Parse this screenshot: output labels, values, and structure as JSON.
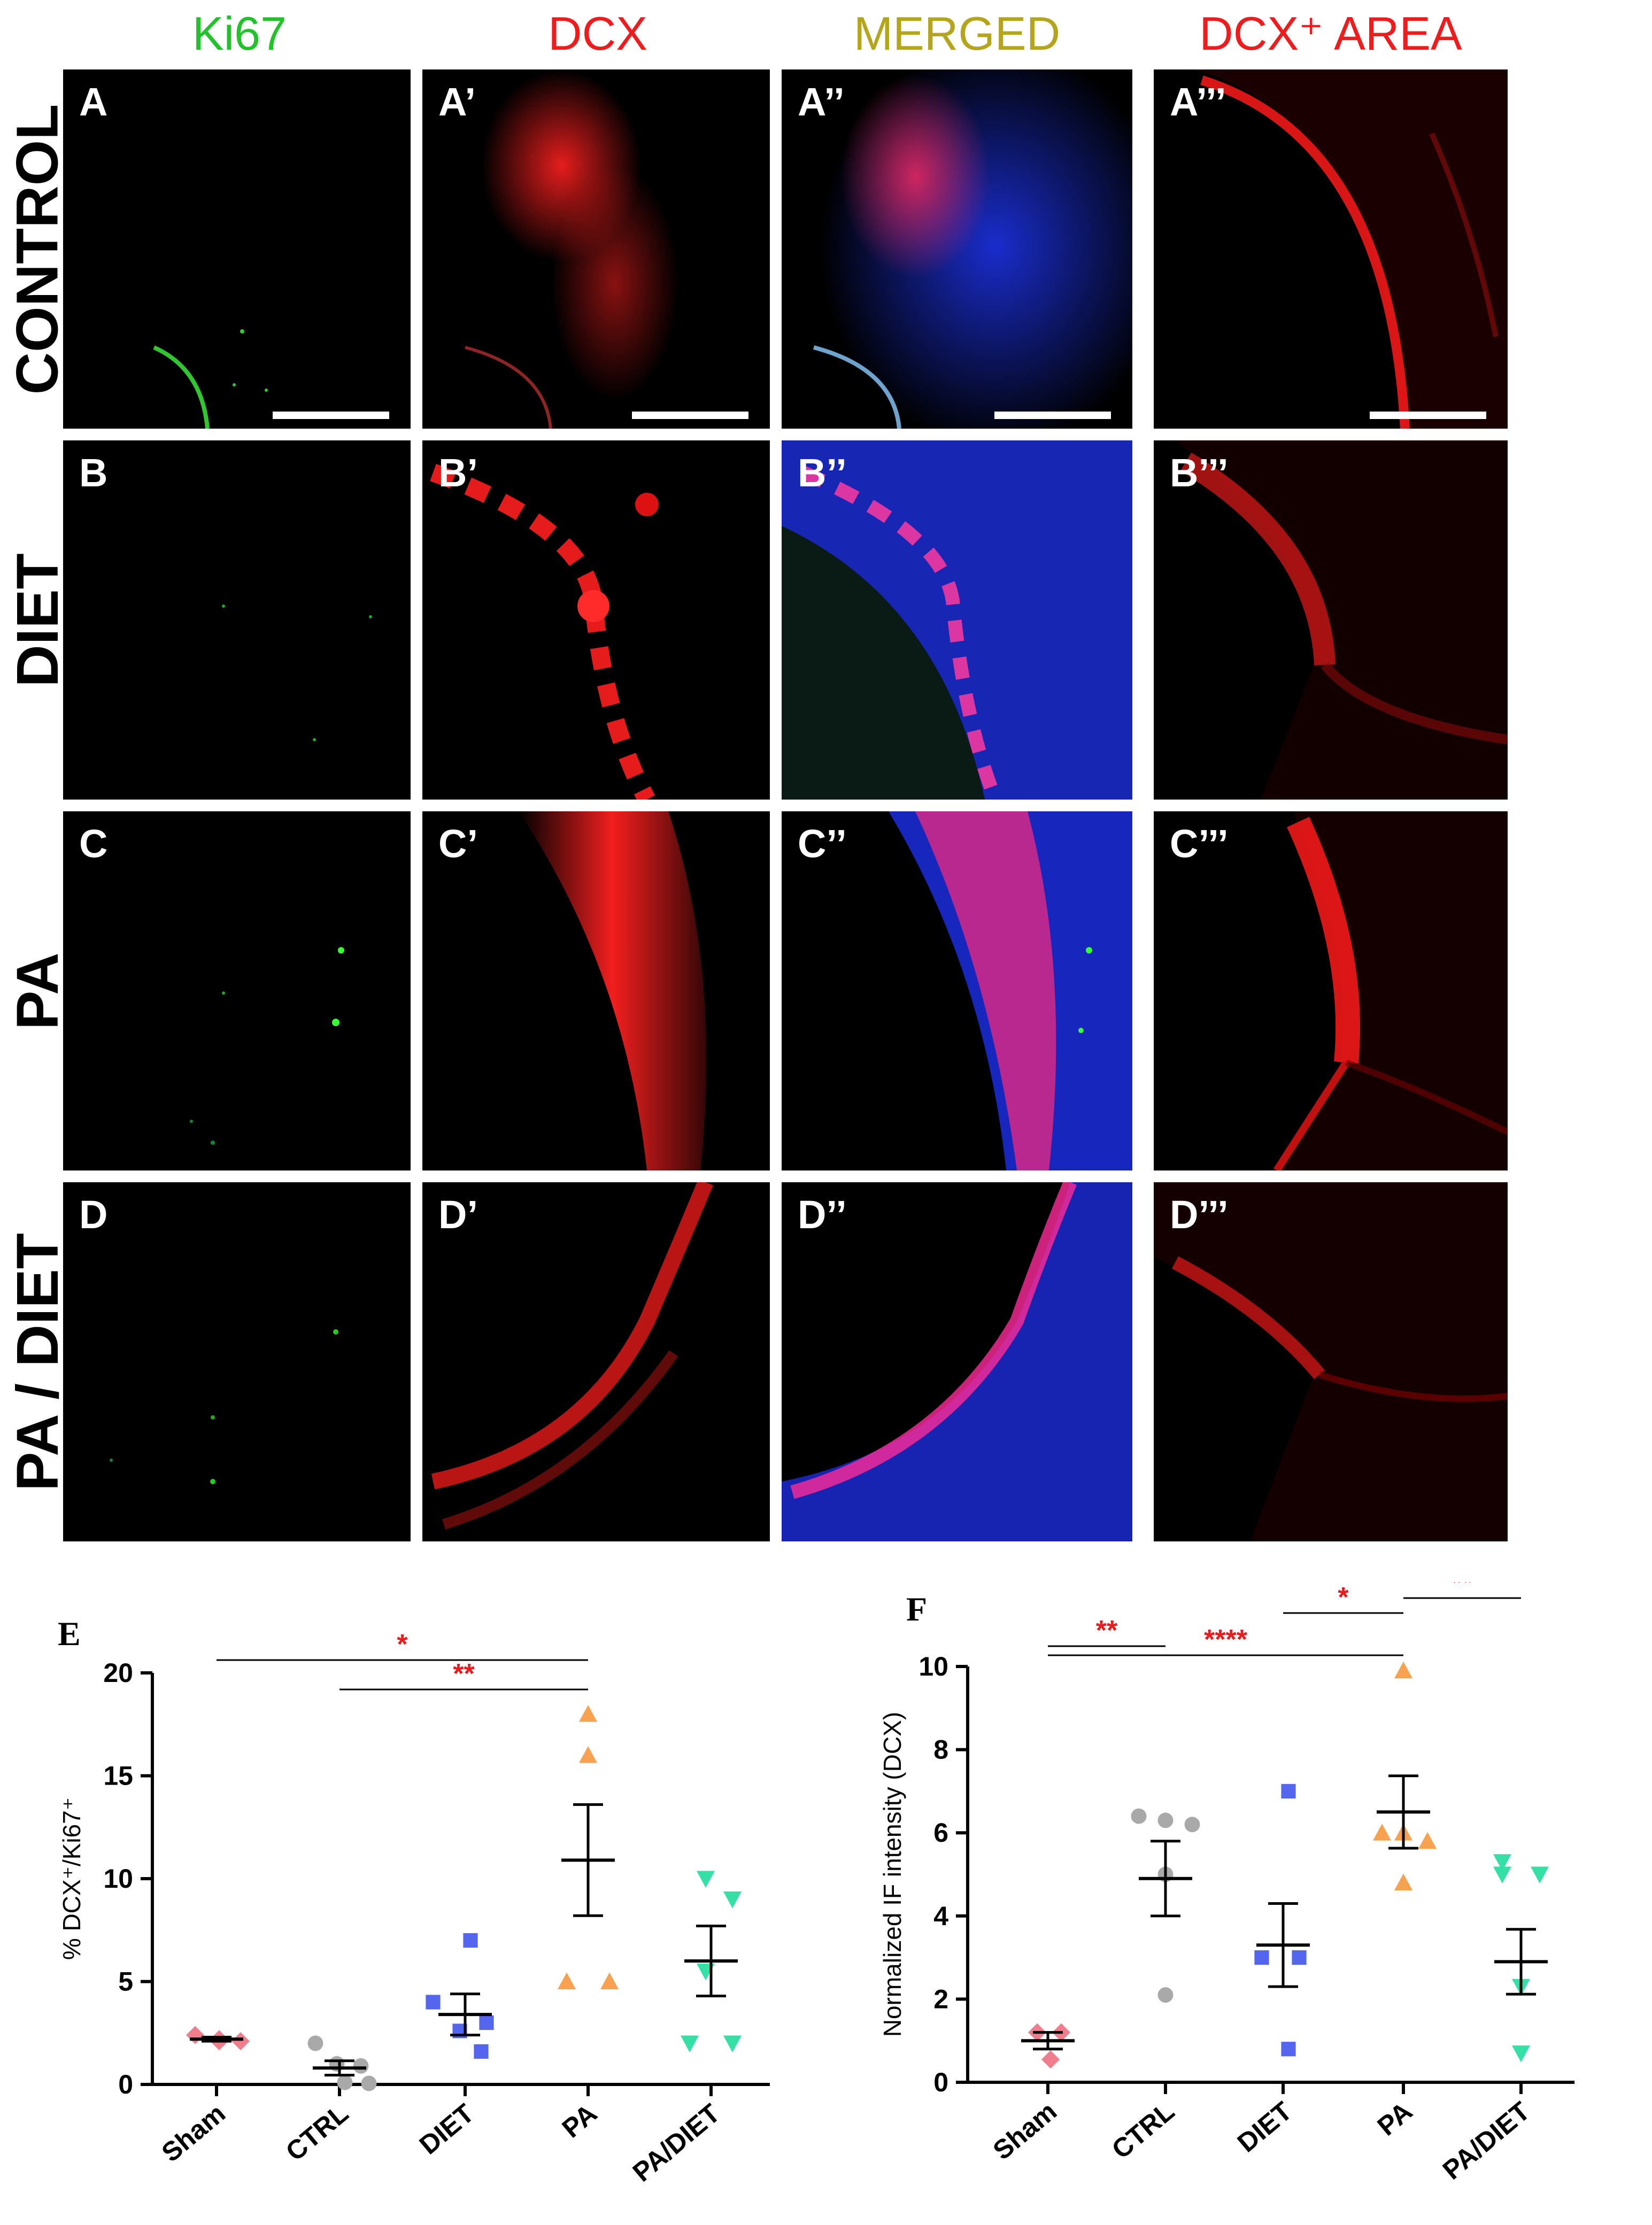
{
  "columns": [
    {
      "label": "Ki67",
      "color": "#22c32a"
    },
    {
      "label": "DCX",
      "color": "#ee1c1c"
    },
    {
      "label": "MERGED",
      "color": "#b5a51d"
    },
    {
      "label": "DCX⁺ AREA",
      "color": "#ee1c1c"
    }
  ],
  "rows": [
    {
      "label": "CONTROL",
      "panels": [
        "A",
        "A’",
        "A’’",
        "A’’’"
      ]
    },
    {
      "label": "DIET",
      "panels": [
        "B",
        "B’",
        "B’’",
        "B’’’"
      ]
    },
    {
      "label": "PA",
      "panels": [
        "C",
        "C’",
        "C’’",
        "C’’’"
      ]
    },
    {
      "label": "PA / DIET",
      "panels": [
        "D",
        "D’",
        "D’’",
        "D’’’"
      ]
    }
  ],
  "chart_data": [
    {
      "panel_label": "E",
      "type": "scatter",
      "categories": [
        "Sham",
        "CTRL",
        "DIET",
        "PA",
        "PA/DIET"
      ],
      "ylabel": "% DCX⁺/Ki67⁺",
      "ylim": [
        0,
        20
      ],
      "yticks": [
        0,
        5,
        10,
        15,
        20
      ],
      "points": [
        [
          2.4,
          2.1,
          2.2,
          2.1
        ],
        [
          2.0,
          1.0,
          0.9,
          0.1,
          0.05
        ],
        [
          7.0,
          4.0,
          3.0,
          2.6,
          1.6
        ],
        [
          18.0,
          16.0,
          5.0,
          5.0
        ],
        [
          10.0,
          9.0,
          5.5,
          2.0,
          2.0
        ]
      ],
      "means": [
        2.2,
        0.8,
        3.4,
        10.9,
        6.0
      ],
      "sem": [
        0.1,
        0.35,
        1.0,
        2.7,
        1.7
      ],
      "colors": [
        "#f07d8b",
        "#a9a9a9",
        "#5566ee",
        "#f8a150",
        "#35e0a6"
      ],
      "markers": [
        "diamond",
        "circle",
        "square",
        "triangle-up",
        "triangle-down"
      ],
      "significance": [
        {
          "from": "Sham",
          "to": "PA",
          "label": "*"
        },
        {
          "from": "CTRL",
          "to": "PA",
          "label": "**"
        }
      ]
    },
    {
      "panel_label": "F",
      "type": "scatter",
      "categories": [
        "Sham",
        "CTRL",
        "DIET",
        "PA",
        "PA/DIET"
      ],
      "ylabel": "Normalized IF intensity (DCX)",
      "ylim": [
        0,
        10
      ],
      "yticks": [
        0,
        2,
        4,
        6,
        8,
        10
      ],
      "points": [
        [
          1.2,
          1.2,
          0.55
        ],
        [
          6.4,
          6.3,
          6.2,
          5.0,
          2.1
        ],
        [
          7.0,
          3.0,
          3.0,
          0.8
        ],
        [
          9.9,
          6.0,
          6.0,
          5.8,
          4.8
        ],
        [
          5.3,
          5.0,
          5.0,
          2.3,
          0.7
        ]
      ],
      "means": [
        1.0,
        4.9,
        3.3,
        6.5,
        2.9
      ],
      "sem": [
        0.2,
        0.9,
        1.0,
        0.87,
        0.78
      ],
      "colors": [
        "#f07d8b",
        "#a9a9a9",
        "#5566ee",
        "#f8a150",
        "#35e0a6"
      ],
      "markers": [
        "diamond",
        "circle",
        "square",
        "triangle-up",
        "triangle-down"
      ],
      "significance": [
        {
          "from": "Sham",
          "to": "CTRL",
          "label": "**"
        },
        {
          "from": "Sham",
          "to": "PA",
          "label": "****"
        },
        {
          "from": "DIET",
          "to": "PA",
          "label": "*"
        },
        {
          "from": "PA",
          "to": "PA/DIET",
          "label": "**"
        }
      ]
    }
  ]
}
